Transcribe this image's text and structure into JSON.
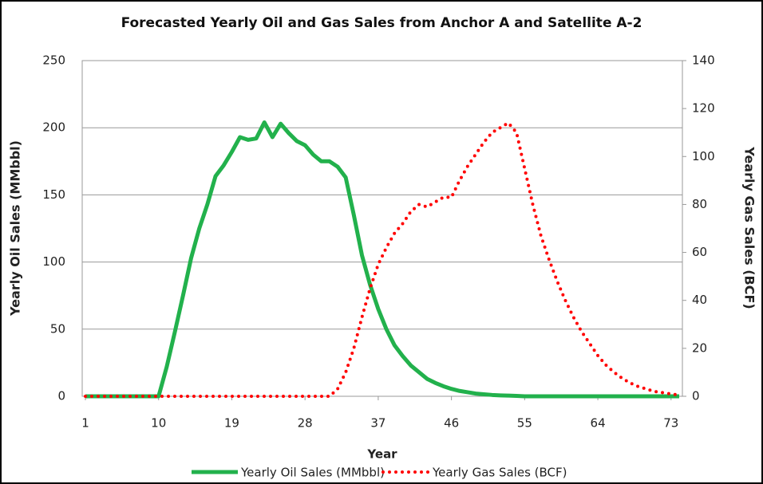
{
  "chart_data": {
    "type": "line",
    "title": "Forecasted Yearly Oil and Gas Sales from Anchor A and Satellite A-2",
    "x_label": "Year",
    "y_label": "Yearly Oil Sales (MMbbl)",
    "y2_label": "Yearly Gas Sales (BCF)",
    "x": [
      1,
      2,
      3,
      4,
      5,
      6,
      7,
      8,
      9,
      10,
      11,
      12,
      13,
      14,
      15,
      16,
      17,
      18,
      19,
      20,
      21,
      22,
      23,
      24,
      25,
      26,
      27,
      28,
      29,
      30,
      31,
      32,
      33,
      34,
      35,
      36,
      37,
      38,
      39,
      40,
      41,
      42,
      43,
      44,
      45,
      46,
      47,
      48,
      49,
      50,
      51,
      52,
      53,
      54,
      55,
      56,
      57,
      58,
      59,
      60,
      61,
      62,
      63,
      64,
      65,
      66,
      67,
      68,
      69,
      70,
      71,
      72,
      73,
      74
    ],
    "xlim": [
      1,
      74
    ],
    "xticks": [
      1,
      10,
      19,
      28,
      37,
      46,
      55,
      64,
      73
    ],
    "ylim": [
      0,
      250
    ],
    "yticks": [
      0,
      50,
      100,
      150,
      200,
      250
    ],
    "y2lim": [
      0,
      140
    ],
    "y2ticks": [
      0,
      20,
      40,
      60,
      80,
      100,
      120,
      140
    ],
    "grid": true,
    "legend": "bottom",
    "series": [
      {
        "name": "Yearly Oil Sales (MMbbl)",
        "color": "#22b14c",
        "style": "solid",
        "axis": "y",
        "values": [
          0,
          0,
          0,
          0,
          0,
          0,
          0,
          0,
          0,
          0,
          22,
          48,
          75,
          103,
          125,
          143,
          164,
          172,
          182,
          193,
          191,
          192,
          204,
          193,
          203,
          196,
          190,
          187,
          180,
          175,
          175,
          171,
          163,
          135,
          105,
          83,
          65,
          50,
          38,
          30,
          23,
          18,
          13,
          10,
          7.5,
          5.5,
          4,
          3,
          2,
          1.5,
          1,
          0.7,
          0.5,
          0.3,
          0,
          0,
          0,
          0,
          0,
          0,
          0,
          0,
          0,
          0,
          0,
          0,
          0,
          0,
          0,
          0,
          0,
          0,
          0,
          0
        ]
      },
      {
        "name": "Yearly Gas Sales (BCF)",
        "color": "#ff0000",
        "style": "dotted",
        "axis": "y2",
        "values": [
          0,
          0,
          0,
          0,
          0,
          0,
          0,
          0,
          0,
          0,
          0,
          0,
          0,
          0,
          0,
          0,
          0,
          0,
          0,
          0,
          0,
          0,
          0,
          0,
          0,
          0,
          0,
          0,
          0,
          0,
          0,
          3,
          10,
          20,
          33,
          45,
          55,
          62,
          68,
          72,
          77,
          80,
          79,
          81,
          83,
          83,
          90,
          96,
          101,
          106,
          110,
          112,
          114,
          110,
          95,
          80,
          67,
          57,
          48,
          40,
          33,
          27,
          22,
          17,
          13,
          10,
          7.5,
          5.5,
          4,
          3,
          2,
          1.5,
          1,
          0.5
        ]
      }
    ]
  }
}
